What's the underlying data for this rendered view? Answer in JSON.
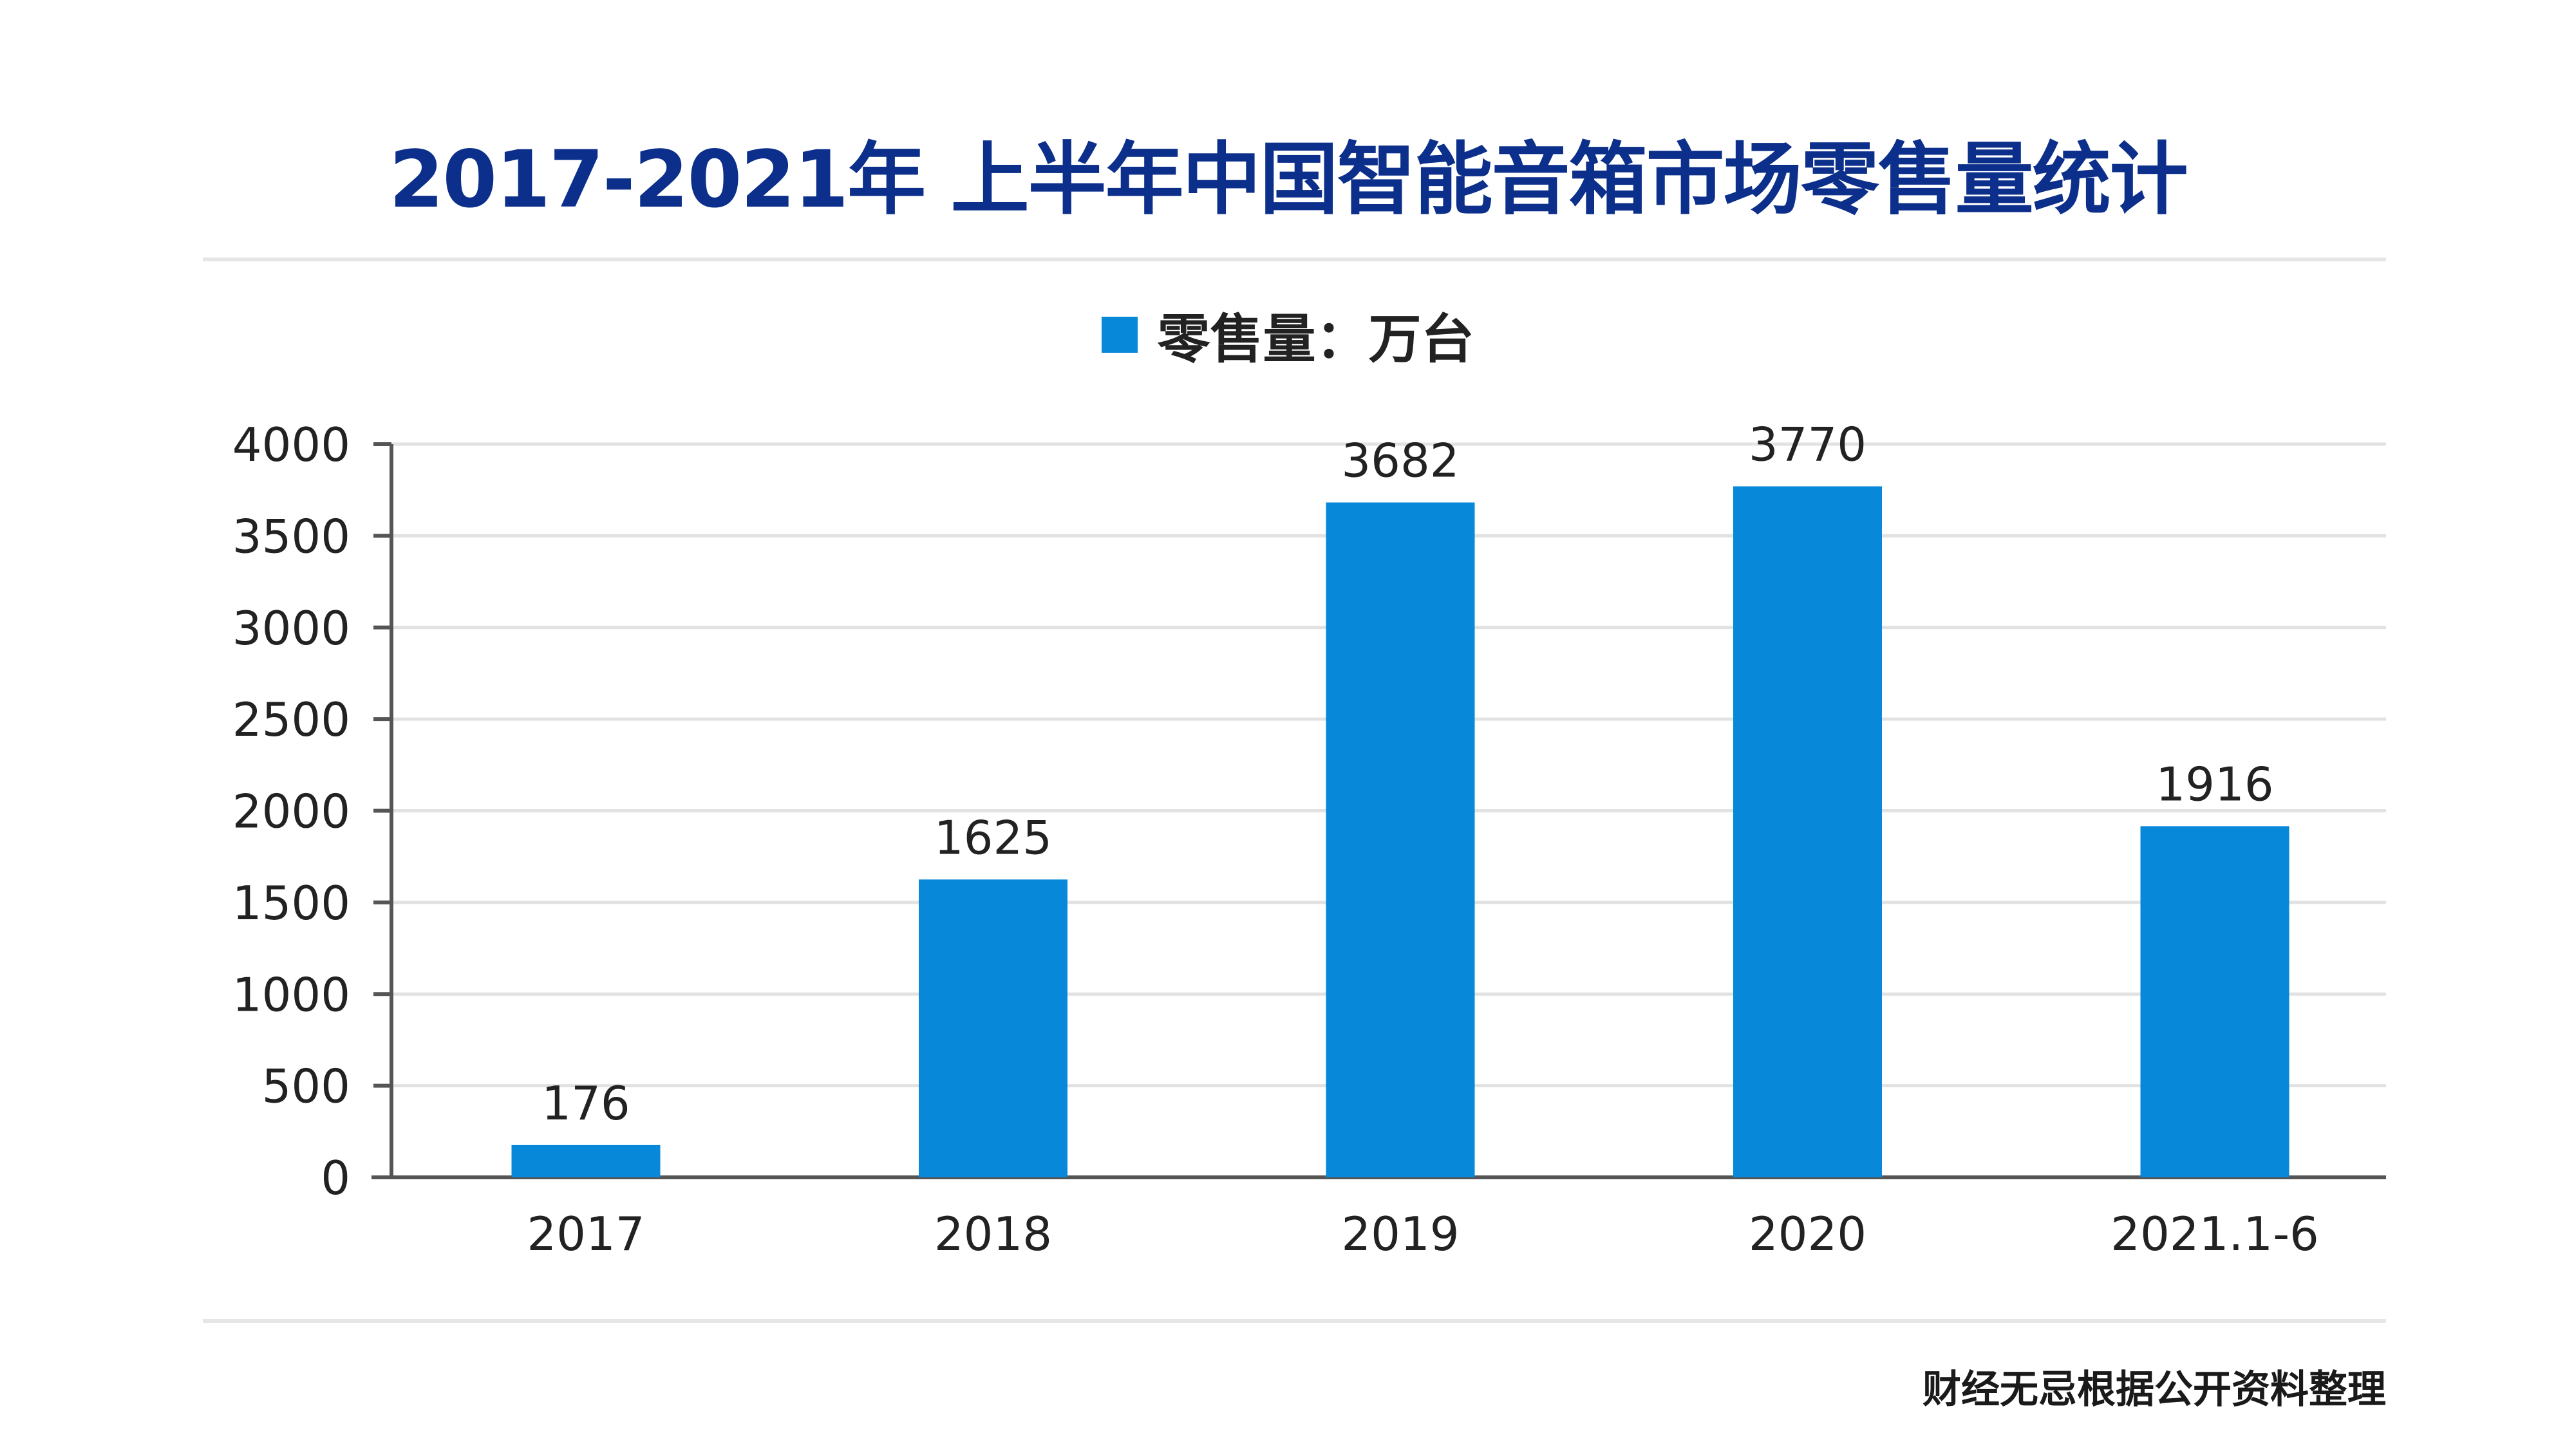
{
  "title": "2017-2021年 上半年中国智能音箱市场零售量统计",
  "footer": "财经无忌根据公开资料整理",
  "colors": {
    "title": "#0b2f8a",
    "bar": "#0788d9",
    "grid": "#e2e2e2",
    "axis": "#555555"
  },
  "chart_data": {
    "type": "bar",
    "title": "2017-2021年 上半年中国智能音箱市场零售量统计",
    "categories": [
      "2017",
      "2018",
      "2019",
      "2020",
      "2021.1-6"
    ],
    "series": [
      {
        "name": "零售量：万台",
        "values": [
          176,
          1625,
          3682,
          3770,
          1916
        ]
      }
    ],
    "ylim": [
      0,
      4000
    ],
    "yticks": [
      0,
      500,
      1000,
      1500,
      2000,
      2500,
      3000,
      3500,
      4000
    ],
    "grid": true,
    "legend": "top-center",
    "data_labels": true
  }
}
